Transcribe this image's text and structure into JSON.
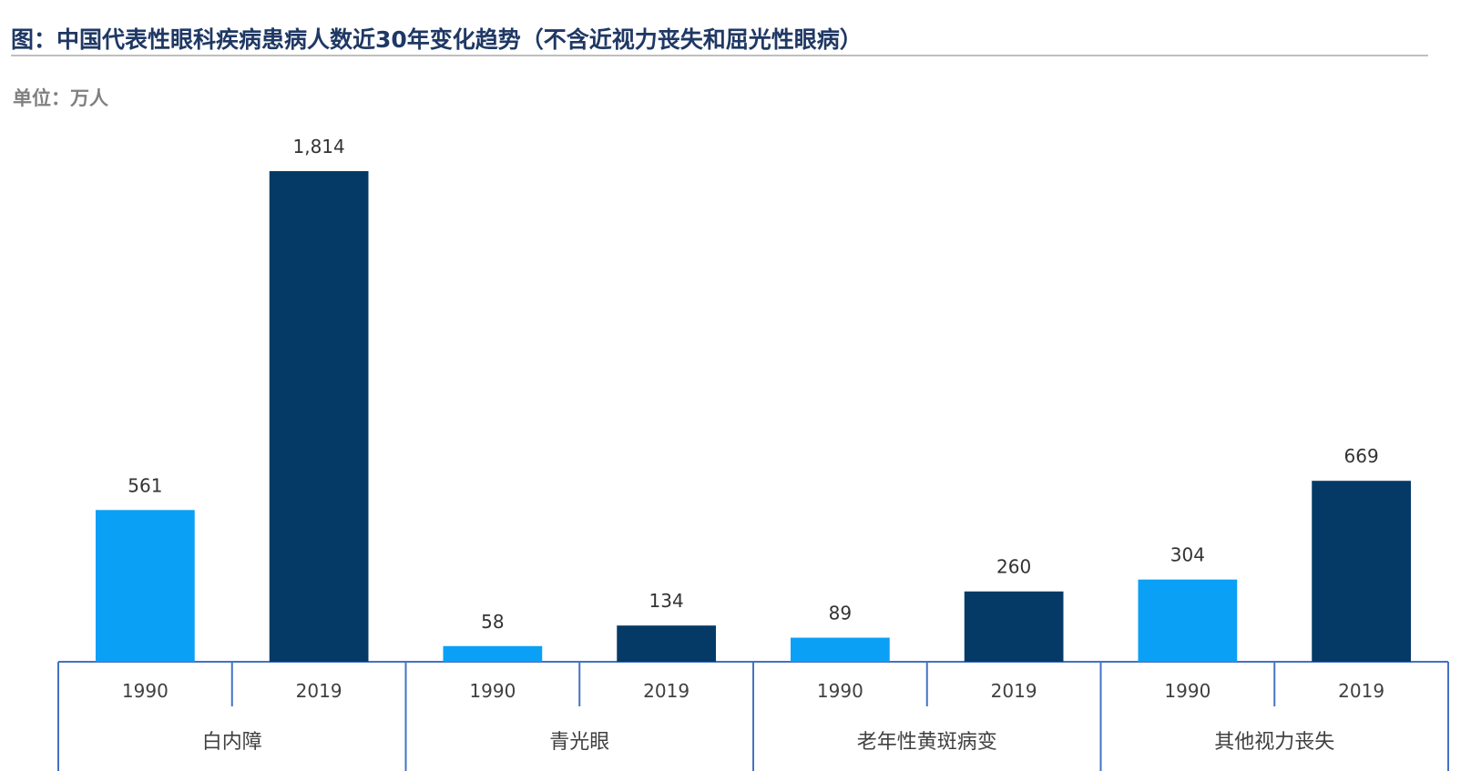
{
  "header": {
    "title": "图：中国代表性眼科疾病患病人数近30年变化趋势（不含近视力丧失和屈光性眼病）",
    "unit": "单位：万人"
  },
  "chart_data": {
    "type": "bar",
    "groups": [
      {
        "label": "白内障",
        "bars": [
          {
            "year": "1990",
            "value": 561,
            "label": "561"
          },
          {
            "year": "2019",
            "value": 1814,
            "label": "1,814"
          }
        ]
      },
      {
        "label": "青光眼",
        "bars": [
          {
            "year": "1990",
            "value": 58,
            "label": "58"
          },
          {
            "year": "2019",
            "value": 134,
            "label": "134"
          }
        ]
      },
      {
        "label": "老年性黄斑病变",
        "bars": [
          {
            "year": "1990",
            "value": 89,
            "label": "89"
          },
          {
            "year": "2019",
            "value": 260,
            "label": "260"
          }
        ]
      },
      {
        "label": "其他视力丧失",
        "bars": [
          {
            "year": "1990",
            "value": 304,
            "label": "304"
          },
          {
            "year": "2019",
            "value": 669,
            "label": "669"
          }
        ]
      }
    ],
    "ylim": [
      0,
      1814
    ],
    "grid": false,
    "colors": {
      "1990": "#0aa0f5",
      "2019": "#053a66",
      "axis": "#4472c4"
    }
  }
}
